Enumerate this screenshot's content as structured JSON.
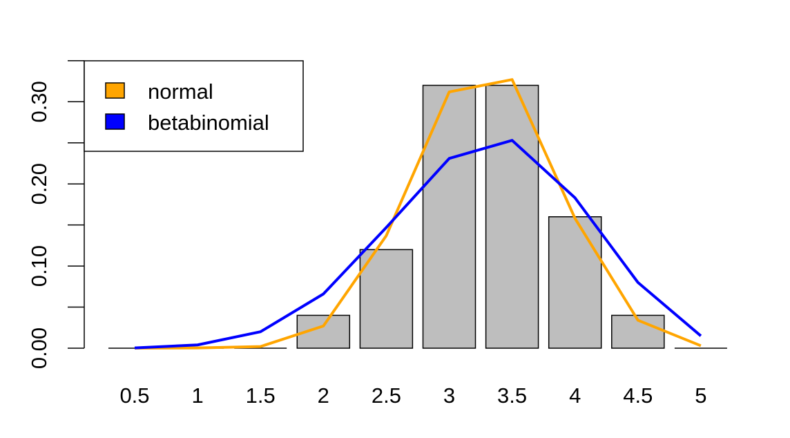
{
  "chart_data": {
    "type": "bar",
    "title": "",
    "xlabel": "",
    "ylabel": "",
    "categories": [
      "0.5",
      "1",
      "1.5",
      "2",
      "2.5",
      "3",
      "3.5",
      "4",
      "4.5",
      "5"
    ],
    "values": [
      0,
      0,
      0,
      0.04,
      0.12,
      0.32,
      0.32,
      0.16,
      0.04,
      0
    ],
    "bar_color": "#bebebe",
    "ylim": [
      0,
      0.35
    ],
    "yticks": [
      0,
      0.05,
      0.1,
      0.15,
      0.2,
      0.25,
      0.3,
      0.35
    ],
    "ytick_labels": [
      "0.00",
      "",
      "0.10",
      "",
      "0.20",
      "",
      "0.30",
      ""
    ],
    "series": [
      {
        "name": "normal",
        "type": "line",
        "color": "#ffa500",
        "values": [
          0.0001,
          0.0003,
          0.002,
          0.027,
          0.137,
          0.312,
          0.327,
          0.158,
          0.034,
          0.003
        ]
      },
      {
        "name": "betabinomial",
        "type": "line",
        "color": "#0000ff",
        "values": [
          0.0003,
          0.004,
          0.02,
          0.066,
          0.147,
          0.231,
          0.253,
          0.183,
          0.08,
          0.015
        ]
      }
    ],
    "legend": {
      "position": "top-left",
      "entries": [
        {
          "label": "normal",
          "color": "#ffa500"
        },
        {
          "label": "betabinomial",
          "color": "#0000ff"
        }
      ]
    },
    "grid": false
  }
}
